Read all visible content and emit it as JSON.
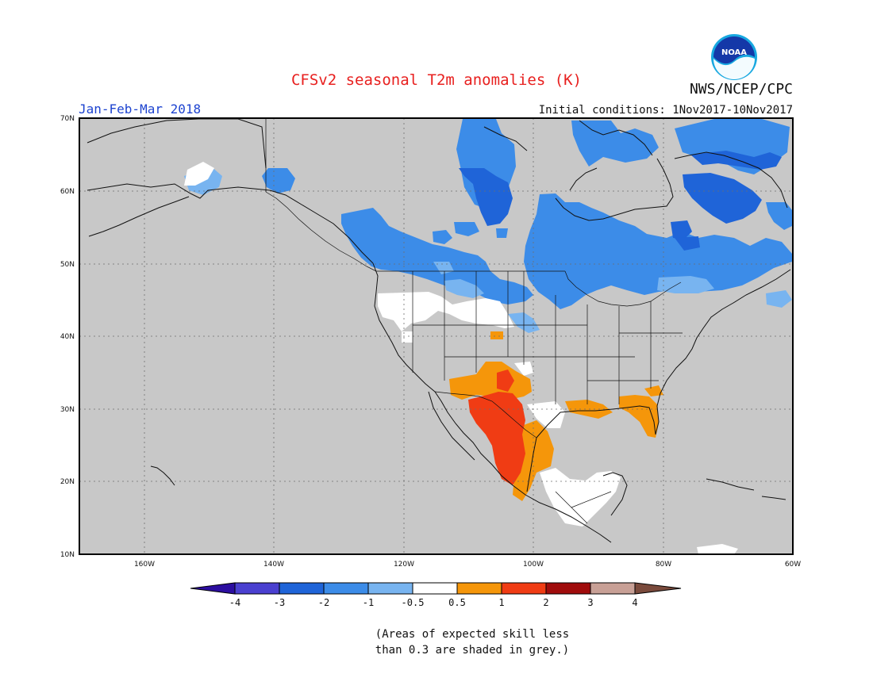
{
  "title": "CFSv2 seasonal T2m anomalies (K)",
  "period": "Jan-Feb-Mar 2018",
  "initial_conditions": "Initial conditions: 1Nov2017-10Nov2017",
  "agency": "NWS/NCEP/CPC",
  "logo_text": "NOAA",
  "footnote": [
    "(Areas of expected skill less",
    "than 0.3 are shaded in grey.)"
  ],
  "map": {
    "lon_range": [
      -170,
      -60
    ],
    "lat_range": [
      10,
      70
    ],
    "lat_labels": [
      "70N",
      "60N",
      "50N",
      "40N",
      "30N",
      "20N",
      "10N"
    ],
    "lon_labels": [
      "160W",
      "140W",
      "120W",
      "100W",
      "80W",
      "60W"
    ],
    "background_color": "#c8c8c8"
  },
  "colorbar": {
    "colors": [
      "#2c0ea0",
      "#4a40d0",
      "#1f64d8",
      "#3c8ce8",
      "#78b4f0",
      "#ffffff",
      "#f5960a",
      "#f03c14",
      "#a00c0c",
      "#c8a096",
      "#7a4a3c"
    ],
    "tick_labels": [
      "-4",
      "-3",
      "-2",
      "-1",
      "-0.5",
      "0.5",
      "1",
      "2",
      "3",
      "4"
    ]
  },
  "anomalies": [
    {
      "level": "-1",
      "color": "#3c8ce8",
      "region": "southern Canada / Great Lakes band"
    },
    {
      "level": "-2",
      "color": "#1f64d8",
      "region": "Quebec / Labrador and Hudson Bay north"
    },
    {
      "level": "-0.5",
      "color": "#78b4f0",
      "region": "fringes of Canadian cold band"
    },
    {
      "level": "-0.5..0.5",
      "color": "#ffffff",
      "region": "northwest US, Alaska, Central America"
    },
    {
      "level": "0.5",
      "color": "#f5960a",
      "region": "southern US / Gulf coast / Florida"
    },
    {
      "level": "1",
      "color": "#f03c14",
      "region": "northern Mexico"
    }
  ]
}
